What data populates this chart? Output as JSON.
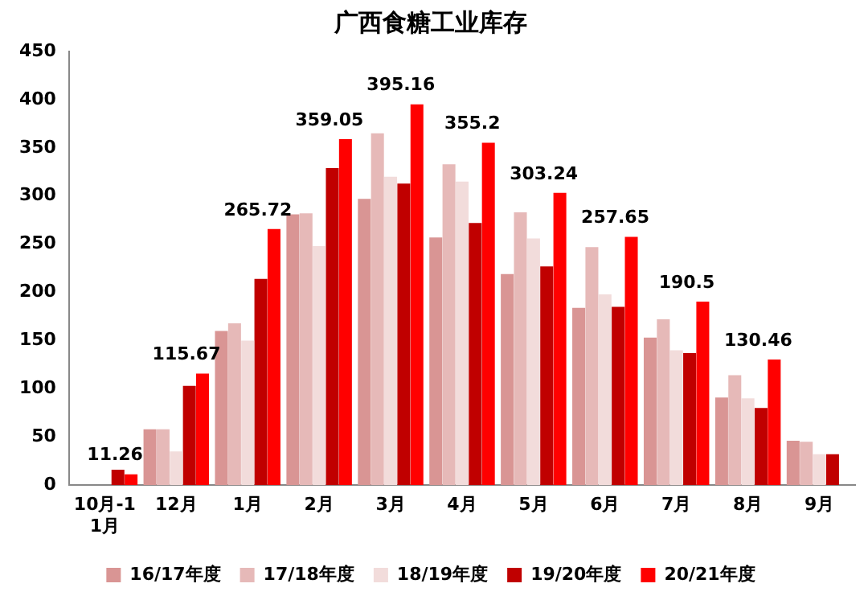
{
  "chart_data": {
    "type": "bar",
    "title": "广西食糖工业库存",
    "categories": [
      "10月-11月",
      "12月",
      "1月",
      "2月",
      "3月",
      "4月",
      "5月",
      "6月",
      "7月",
      "8月",
      "9月"
    ],
    "series": [
      {
        "name": "16/17年度",
        "color": "#d99594",
        "values": [
          null,
          58,
          160,
          281,
          297,
          257,
          219,
          184,
          153,
          91,
          46
        ]
      },
      {
        "name": "17/18年度",
        "color": "#e6b9b8",
        "values": [
          null,
          58,
          168,
          282,
          365,
          333,
          283,
          247,
          172,
          114,
          45
        ]
      },
      {
        "name": "18/19年度",
        "color": "#f2dcdb",
        "values": [
          null,
          35,
          150,
          248,
          320,
          315,
          256,
          198,
          140,
          90,
          32
        ]
      },
      {
        "name": "19/20年度",
        "color": "#c00000",
        "values": [
          16,
          103,
          214,
          329,
          313,
          272,
          227,
          185,
          137,
          80,
          32
        ]
      },
      {
        "name": "20/21年度",
        "color": "#ff0000",
        "values": [
          11.26,
          115.67,
          265.72,
          359.05,
          395.16,
          355.2,
          303.24,
          257.65,
          190.5,
          130.46,
          null
        ],
        "value_labels": [
          "11.26",
          "115.67",
          "265.72",
          "359.05",
          "395.16",
          "355.2",
          "303.24",
          "257.65",
          "190.5",
          "130.46",
          null
        ]
      }
    ],
    "ylim": [
      0,
      450
    ],
    "yticks": [
      0,
      50,
      100,
      150,
      200,
      250,
      300,
      350,
      400,
      450
    ],
    "grid": false,
    "legend": "bottom"
  }
}
